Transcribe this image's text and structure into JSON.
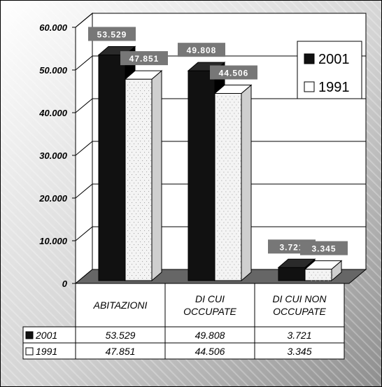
{
  "chart_data": {
    "type": "bar",
    "title": "",
    "xlabel": "",
    "ylabel": "",
    "ylim": [
      0,
      60000
    ],
    "yticks": [
      "0",
      "10.000",
      "20.000",
      "30.000",
      "40.000",
      "50.000",
      "60.000"
    ],
    "grid": true,
    "legend_position": "top-right",
    "categories": [
      [
        "ABITAZIONI"
      ],
      [
        "DI CUI",
        "OCCUPATE"
      ],
      [
        "DI CUI NON",
        "OCCUPATE"
      ]
    ],
    "series": [
      {
        "name": "2001",
        "values": [
          53529,
          49808,
          3721
        ],
        "labels": [
          "53.529",
          "49.808",
          "3.721"
        ],
        "color": "#111111"
      },
      {
        "name": "1991",
        "values": [
          47851,
          44506,
          3345
        ],
        "labels": [
          "47.851",
          "44.506",
          "3.345"
        ],
        "color": "#ffffff"
      }
    ]
  }
}
